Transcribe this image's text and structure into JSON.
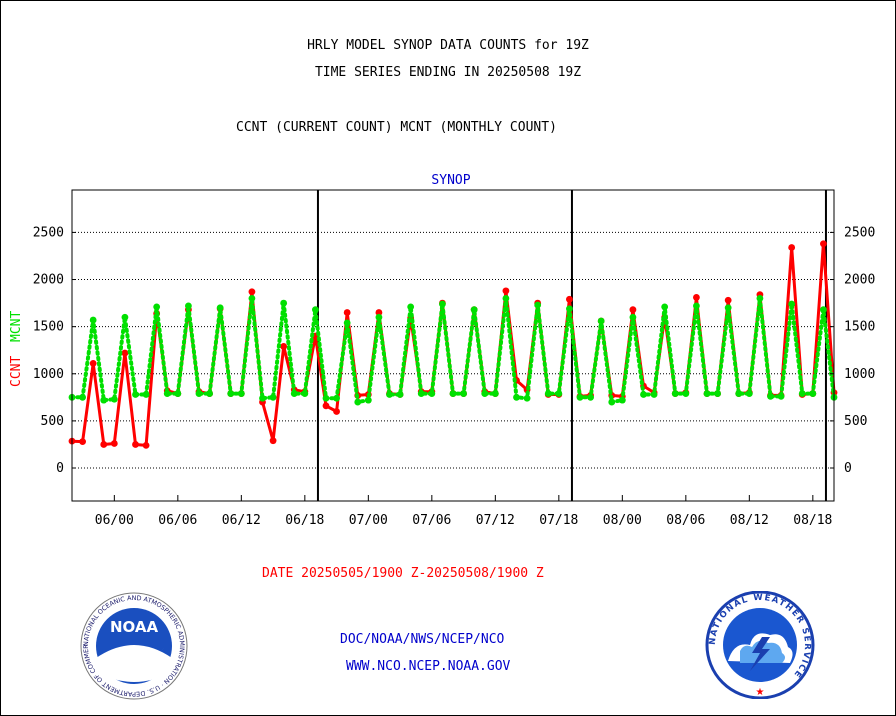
{
  "title_lines": [
    "HRLY MODEL SYNOP DATA COUNTS for 19Z",
    "TIME SERIES ENDING IN 20250508 19Z"
  ],
  "subtitle": "CCNT (CURRENT COUNT) MCNT (MONTHLY COUNT)",
  "date_range": "DATE 20250505/1900 Z-20250508/1900 Z",
  "footer": {
    "line1": "DOC/NOAA/NWS/NCEP/NCO",
    "line2": "WWW.NCO.NCEP.NOAA.GOV"
  },
  "logos": {
    "noaa_text": "NOAA",
    "noaa_ring": "NATIONAL OCEANIC AND ATMOSPHERIC ADMINISTRATION · U.S. DEPARTMENT OF COMMERCE ·",
    "nws_ring": "NATIONAL WEATHER SERVICE"
  },
  "colors": {
    "ccnt": "#ff0000",
    "mcnt": "#00e000",
    "title": "#000000",
    "plot_label": "#0000cc",
    "footer": "#0000cc"
  },
  "chart_data": {
    "type": "line",
    "title": "SYNOP",
    "ylabel": [
      "CCNT",
      "MCNT"
    ],
    "ylim": [
      -350,
      2950
    ],
    "yticks": [
      0,
      500,
      1000,
      1500,
      2000,
      2500
    ],
    "xlim": [
      0,
      72
    ],
    "xticks": [
      {
        "x": 4,
        "label": "06/00"
      },
      {
        "x": 10,
        "label": "06/06"
      },
      {
        "x": 16,
        "label": "06/12"
      },
      {
        "x": 22,
        "label": "06/18"
      },
      {
        "x": 28,
        "label": "07/00"
      },
      {
        "x": 34,
        "label": "07/06"
      },
      {
        "x": 40,
        "label": "07/12"
      },
      {
        "x": 46,
        "label": "07/18"
      },
      {
        "x": 52,
        "label": "08/00"
      },
      {
        "x": 58,
        "label": "08/06"
      },
      {
        "x": 64,
        "label": "08/12"
      },
      {
        "x": 70,
        "label": "08/18"
      }
    ],
    "day_boundaries": [
      23.24,
      47.24,
      71.24
    ],
    "grid": true,
    "series": [
      {
        "name": "CCNT",
        "style": "solid",
        "color": "#ff0000",
        "values": [
          285,
          280,
          1110,
          250,
          260,
          1220,
          250,
          240,
          1640,
          820,
          790,
          1680,
          810,
          790,
          1690,
          790,
          790,
          1870,
          700,
          290,
          1290,
          830,
          810,
          1400,
          660,
          600,
          1650,
          770,
          780,
          1650,
          790,
          780,
          1590,
          810,
          810,
          1750,
          790,
          790,
          1680,
          810,
          790,
          1880,
          930,
          830,
          1750,
          780,
          780,
          1790,
          760,
          770,
          1560,
          770,
          760,
          1680,
          870,
          800,
          1600,
          790,
          800,
          1810,
          790,
          790,
          1780,
          790,
          800,
          1840,
          770,
          770,
          2340,
          780,
          790,
          2380,
          800
        ]
      },
      {
        "name": "MCNT",
        "style": "dotted",
        "color": "#00e000",
        "values": [
          750,
          750,
          1570,
          720,
          730,
          1600,
          780,
          780,
          1710,
          790,
          790,
          1720,
          790,
          790,
          1700,
          790,
          790,
          1800,
          740,
          750,
          1750,
          790,
          790,
          1680,
          740,
          740,
          1540,
          700,
          720,
          1600,
          780,
          780,
          1710,
          790,
          790,
          1740,
          790,
          790,
          1680,
          790,
          790,
          1800,
          750,
          740,
          1730,
          790,
          790,
          1690,
          750,
          750,
          1560,
          700,
          720,
          1600,
          780,
          780,
          1710,
          790,
          790,
          1720,
          790,
          790,
          1700,
          790,
          790,
          1800,
          760,
          760,
          1740,
          790,
          790,
          1680,
          750
        ]
      }
    ]
  }
}
